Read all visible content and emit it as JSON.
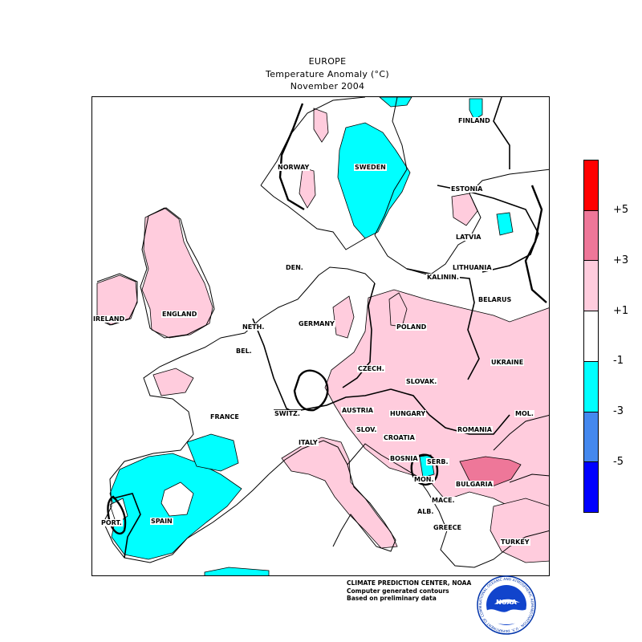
{
  "header": {
    "title": "EUROPE",
    "subtitle": "Temperature Anomaly (°C)",
    "period": "November 2004"
  },
  "legend": {
    "ticks": [
      "+5",
      "+3",
      "+1",
      "-1",
      "-3",
      "-5"
    ],
    "colors": [
      "#ff0000",
      "#ee7799",
      "#ffccdd",
      "#ffffff",
      "#00ffff",
      "#4488ee",
      "#0000ff"
    ]
  },
  "map": {
    "countries": [
      {
        "key": "finland",
        "label": "FINLAND"
      },
      {
        "key": "norway",
        "label": "NORWAY"
      },
      {
        "key": "sweden",
        "label": "SWEDEN"
      },
      {
        "key": "estonia",
        "label": "ESTONIA"
      },
      {
        "key": "latvia",
        "label": "LATVIA"
      },
      {
        "key": "lithuania",
        "label": "LITHUANIA"
      },
      {
        "key": "kalinin",
        "label": "KALININ."
      },
      {
        "key": "denmark",
        "label": "DEN."
      },
      {
        "key": "belarus",
        "label": "BELARUS"
      },
      {
        "key": "ireland",
        "label": "IRELAND"
      },
      {
        "key": "england",
        "label": "ENGLAND"
      },
      {
        "key": "netherlands",
        "label": "NETH."
      },
      {
        "key": "germany",
        "label": "GERMANY"
      },
      {
        "key": "poland",
        "label": "POLAND"
      },
      {
        "key": "belgium",
        "label": "BEL."
      },
      {
        "key": "czech",
        "label": "CZECH."
      },
      {
        "key": "slovakia",
        "label": "SLOVAK."
      },
      {
        "key": "ukraine",
        "label": "UKRAINE"
      },
      {
        "key": "austria",
        "label": "AUSTRIA"
      },
      {
        "key": "hungary",
        "label": "HUNGARY"
      },
      {
        "key": "switzerland",
        "label": "SWITZ."
      },
      {
        "key": "france",
        "label": "FRANCE"
      },
      {
        "key": "moldova",
        "label": "MOL."
      },
      {
        "key": "romania",
        "label": "ROMANIA"
      },
      {
        "key": "slovenia",
        "label": "SLOV."
      },
      {
        "key": "croatia",
        "label": "CROATIA"
      },
      {
        "key": "italy",
        "label": "ITALY"
      },
      {
        "key": "bosnia",
        "label": "BOSNIA"
      },
      {
        "key": "serbia",
        "label": "SERB."
      },
      {
        "key": "montenegro",
        "label": "MON."
      },
      {
        "key": "bulgaria",
        "label": "BULGARIA"
      },
      {
        "key": "macedonia",
        "label": "MACE."
      },
      {
        "key": "albania",
        "label": "ALB."
      },
      {
        "key": "greece",
        "label": "GREECE"
      },
      {
        "key": "portugal",
        "label": "PORT."
      },
      {
        "key": "spain",
        "label": "SPAIN"
      },
      {
        "key": "turkey",
        "label": "TURKEY"
      }
    ]
  },
  "footer": {
    "line1": "CLIMATE PREDICTION CENTER, NOAA",
    "line2": "Computer generated contours",
    "line3": "Based on preliminary data"
  },
  "logo": {
    "text": "NOAA",
    "ring_text": "NATIONAL OCEANIC AND ATMOSPHERIC ADMINISTRATION · U.S. DEPARTMENT OF COMMERCE"
  }
}
